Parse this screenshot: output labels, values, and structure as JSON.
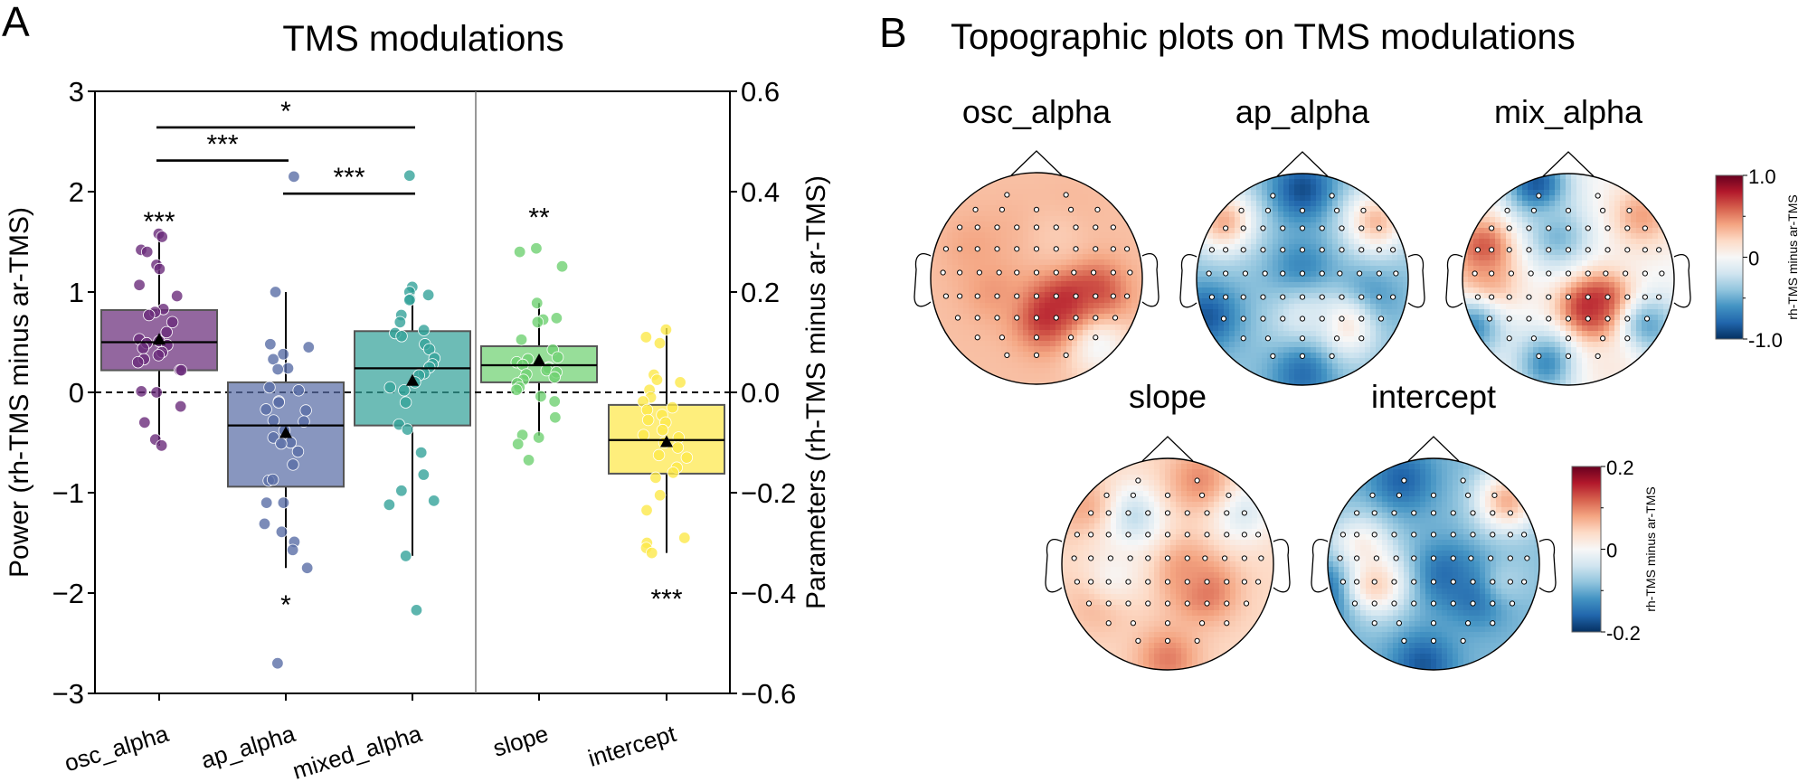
{
  "chart_data": [
    {
      "panel": "A",
      "type": "box",
      "title": "TMS modulations",
      "ylabel_left": "Power (rh-TMS minus ar-TMS)",
      "ylabel_right": "Parameters (rh-TMS minus ar-TMS)",
      "ylim_left": [
        -3,
        3
      ],
      "ylim_right": [
        -0.6,
        0.6
      ],
      "yticks_left": [
        "3",
        "2",
        "1",
        "0",
        "−1",
        "−2",
        "−3"
      ],
      "yticks_left_values": [
        3,
        2,
        1,
        0,
        -1,
        -2,
        -3
      ],
      "yticks_right": [
        "0.6",
        "0.4",
        "0.2",
        "0.0",
        "−0.2",
        "−0.4",
        "−0.6"
      ],
      "yticks_right_values": [
        0.6,
        0.4,
        0.2,
        0.0,
        -0.2,
        -0.4,
        -0.6
      ],
      "reference_line": 0,
      "categories": [
        "osc_alpha",
        "ap_alpha",
        "mixed_alpha",
        "slope",
        "intercept"
      ],
      "series": [
        {
          "name": "osc_alpha",
          "axis": "left",
          "color": "#6a2c7a",
          "whislo": -0.53,
          "q1": 0.22,
          "med": 0.5,
          "q3": 0.82,
          "whishi": 1.58,
          "mean": 0.52,
          "significance": "***",
          "sig_position": "above",
          "points": [
            1.58,
            1.55,
            1.42,
            1.4,
            1.27,
            1.23,
            1.07,
            0.96,
            0.83,
            0.8,
            0.77,
            0.7,
            0.6,
            0.53,
            0.51,
            0.49,
            0.47,
            0.44,
            0.4,
            0.37,
            0.33,
            0.3,
            0.22,
            0.22,
            0.01,
            0.0,
            -0.14,
            -0.3,
            -0.47,
            -0.53
          ]
        },
        {
          "name": "ap_alpha",
          "axis": "left",
          "color": "#5a6ea6",
          "whislo": -1.75,
          "q1": -0.94,
          "med": -0.33,
          "q3": 0.1,
          "whishi": 1.0,
          "mean": -0.41,
          "significance": "*",
          "sig_position": "below",
          "points": [
            2.15,
            1.0,
            0.48,
            0.45,
            0.38,
            0.33,
            0.24,
            0.23,
            0.05,
            0.02,
            -0.09,
            -0.1,
            -0.17,
            -0.18,
            -0.28,
            -0.29,
            -0.38,
            -0.45,
            -0.5,
            -0.51,
            -0.59,
            -0.72,
            -0.88,
            -0.87,
            -1.1,
            -1.1,
            -1.31,
            -1.39,
            -1.49,
            -1.57,
            -1.75,
            -2.7
          ]
        },
        {
          "name": "mixed_alpha",
          "axis": "left",
          "color": "#35a29a",
          "whislo": -1.63,
          "q1": -0.33,
          "med": 0.24,
          "q3": 0.61,
          "whishi": 1.05,
          "mean": 0.11,
          "significance": "",
          "sig_position": "",
          "points": [
            2.16,
            1.05,
            1.0,
            0.97,
            0.93,
            0.92,
            0.77,
            0.7,
            0.62,
            0.59,
            0.56,
            0.48,
            0.43,
            0.34,
            0.28,
            0.25,
            0.19,
            0.17,
            0.1,
            0.05,
            0.02,
            -0.1,
            -0.32,
            -0.37,
            -0.6,
            -0.82,
            -0.98,
            -1.08,
            -1.12,
            -1.63,
            -2.17
          ]
        },
        {
          "name": "slope",
          "axis": "right",
          "color": "#6fd172",
          "whislo": -0.086,
          "q1": 0.02,
          "med": 0.054,
          "q3": 0.092,
          "whishi": 0.178,
          "mean": 0.063,
          "significance": "**",
          "sig_position": "above",
          "points": [
            0.287,
            0.28,
            0.251,
            0.178,
            0.148,
            0.145,
            0.14,
            0.105,
            0.085,
            0.07,
            0.066,
            0.06,
            0.055,
            0.05,
            0.048,
            0.044,
            0.04,
            0.036,
            0.03,
            0.025,
            0.018,
            0.01,
            0.005,
            -0.008,
            -0.018,
            -0.05,
            -0.085,
            -0.09,
            -0.103,
            -0.135
          ]
        },
        {
          "name": "intercept",
          "axis": "right",
          "color": "#fde84a",
          "whislo": -0.32,
          "q1": -0.162,
          "med": -0.095,
          "q3": -0.025,
          "whishi": 0.128,
          "mean": -0.1,
          "significance": "***",
          "sig_position": "below",
          "points": [
            0.125,
            0.11,
            0.098,
            0.035,
            0.025,
            0.02,
            0.005,
            -0.01,
            -0.018,
            -0.03,
            -0.035,
            -0.045,
            -0.055,
            -0.06,
            -0.075,
            -0.085,
            -0.09,
            -0.1,
            -0.11,
            -0.125,
            -0.13,
            -0.15,
            -0.16,
            -0.17,
            -0.205,
            -0.235,
            -0.29,
            -0.3,
            -0.31,
            -0.32
          ]
        }
      ],
      "comparisons": [
        {
          "from": "osc_alpha",
          "to": "mixed_alpha",
          "label": "*",
          "y": 2.64
        },
        {
          "from": "osc_alpha",
          "to": "ap_alpha",
          "label": "***",
          "y": 2.31
        },
        {
          "from": "ap_alpha",
          "to": "mixed_alpha",
          "label": "***",
          "y": 1.98
        }
      ],
      "mean_marker": "triangle"
    },
    {
      "panel": "B",
      "type": "heatmap",
      "title": "Topographic plots on TMS modulations",
      "colormap": "RdBu_r",
      "maps": [
        {
          "name": "osc_alpha",
          "scale": "power",
          "dominant": "positive",
          "blobs": [
            {
              "x": 0.35,
              "y": 0.25,
              "v": 0.95
            },
            {
              "x": 0.1,
              "y": 0.35,
              "v": 0.8
            },
            {
              "x": 0.55,
              "y": 0.15,
              "v": 0.7
            },
            {
              "x": -0.4,
              "y": 0.1,
              "v": 0.45
            },
            {
              "x": -0.2,
              "y": -0.45,
              "v": 0.35
            },
            {
              "x": 0.3,
              "y": -0.6,
              "v": 0.35
            },
            {
              "x": 0.6,
              "y": 0.65,
              "v": -0.05
            },
            {
              "x": -0.6,
              "y": -0.3,
              "v": 0.4
            },
            {
              "x": 0.2,
              "y": -0.4,
              "v": 0.25
            }
          ],
          "base": 0.3
        },
        {
          "name": "ap_alpha",
          "scale": "power",
          "dominant": "negative",
          "blobs": [
            {
              "x": 0.0,
              "y": -0.85,
              "v": -0.95
            },
            {
              "x": 0.0,
              "y": -0.1,
              "v": -0.7
            },
            {
              "x": 0.6,
              "y": 0.2,
              "v": -0.7
            },
            {
              "x": -0.9,
              "y": 0.35,
              "v": -0.9
            },
            {
              "x": -0.75,
              "y": -0.55,
              "v": 0.45
            },
            {
              "x": 0.7,
              "y": -0.55,
              "v": 0.4
            },
            {
              "x": 0.4,
              "y": 0.45,
              "v": 0.2
            },
            {
              "x": 0.0,
              "y": 0.4,
              "v": -0.1
            },
            {
              "x": 0.0,
              "y": 0.9,
              "v": -0.8
            }
          ],
          "base": -0.4
        },
        {
          "name": "mix_alpha",
          "scale": "power",
          "dominant": "mixed",
          "blobs": [
            {
              "x": 0.35,
              "y": 0.3,
              "v": 0.95
            },
            {
              "x": 0.2,
              "y": 0.28,
              "v": 0.8
            },
            {
              "x": -0.8,
              "y": -0.3,
              "v": 0.7
            },
            {
              "x": -0.8,
              "y": 0.1,
              "v": 0.55
            },
            {
              "x": 0.7,
              "y": -0.6,
              "v": 0.45
            },
            {
              "x": -0.3,
              "y": -0.9,
              "v": -0.95
            },
            {
              "x": -0.1,
              "y": -0.4,
              "v": -0.5
            },
            {
              "x": -0.9,
              "y": 0.45,
              "v": -0.7
            },
            {
              "x": 0.75,
              "y": 0.45,
              "v": -0.6
            },
            {
              "x": -0.2,
              "y": 0.8,
              "v": -0.7
            },
            {
              "x": 0.4,
              "y": 0.85,
              "v": 0.1
            }
          ],
          "base": 0.0
        },
        {
          "name": "slope",
          "scale": "parameter",
          "dominant": "positive",
          "blobs": [
            {
              "x": 0.35,
              "y": 0.25,
              "v": 0.6
            },
            {
              "x": 0.15,
              "y": 0.05,
              "v": 0.45
            },
            {
              "x": -0.35,
              "y": -0.45,
              "v": -0.35
            },
            {
              "x": 0.7,
              "y": -0.5,
              "v": -0.2
            },
            {
              "x": 0.3,
              "y": -0.8,
              "v": 0.5
            },
            {
              "x": -0.8,
              "y": -0.55,
              "v": 0.4
            },
            {
              "x": -0.65,
              "y": 0.35,
              "v": 0.4
            },
            {
              "x": 0.0,
              "y": 0.9,
              "v": 0.55
            },
            {
              "x": -0.5,
              "y": 0.1,
              "v": 0.0
            }
          ],
          "base": 0.2
        },
        {
          "name": "intercept",
          "scale": "parameter",
          "dominant": "negative",
          "blobs": [
            {
              "x": 0.45,
              "y": 0.25,
              "v": -0.95
            },
            {
              "x": 0.1,
              "y": 0.1,
              "v": -0.8
            },
            {
              "x": -0.1,
              "y": 0.95,
              "v": -0.9
            },
            {
              "x": -0.3,
              "y": -0.8,
              "v": -0.85
            },
            {
              "x": 0.7,
              "y": -0.6,
              "v": 0.45
            },
            {
              "x": -0.7,
              "y": -0.15,
              "v": 0.15
            },
            {
              "x": -0.95,
              "y": 0.25,
              "v": -0.9
            },
            {
              "x": -0.55,
              "y": 0.2,
              "v": 0.3
            },
            {
              "x": 0.7,
              "y": 0.15,
              "v": -0.3
            }
          ],
          "base": -0.45
        }
      ],
      "colorbars": [
        {
          "applies_to": [
            "osc_alpha",
            "ap_alpha",
            "mix_alpha"
          ],
          "range": [
            -1.0,
            1.0
          ],
          "ticks": [
            "1.0",
            "0",
            "-1.0"
          ],
          "label": "rh-TMS minus ar-TMS"
        },
        {
          "applies_to": [
            "slope",
            "intercept"
          ],
          "range": [
            -0.2,
            0.2
          ],
          "ticks": [
            "0.2",
            "0",
            "-0.2"
          ],
          "label": "rh-TMS minus ar-TMS"
        }
      ]
    }
  ],
  "panel_labels": {
    "a": "A",
    "b": "B"
  },
  "colors": {
    "cmap": [
      "#053061",
      "#2166ac",
      "#4393c3",
      "#92c5de",
      "#d1e5f0",
      "#f7f7f7",
      "#fddbc7",
      "#f4a582",
      "#d6604d",
      "#b2182b",
      "#67001f"
    ]
  }
}
